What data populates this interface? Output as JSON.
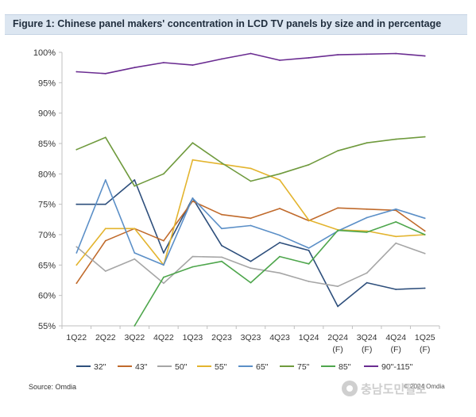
{
  "title": "Figure 1: Chinese panel makers' concentration in LCD TV panels by size and in percentage",
  "source": "Source: Omdia",
  "copyright": "© 2024 Omdia",
  "watermark": "충남도민일보",
  "chart_data": {
    "type": "line",
    "title": "Figure 1: Chinese panel makers' concentration in LCD TV panels by size and in percentage",
    "xlabel": "",
    "ylabel": "",
    "ylim": [
      55,
      100
    ],
    "yticks": [
      "55%",
      "60%",
      "65%",
      "70%",
      "75%",
      "80%",
      "85%",
      "90%",
      "95%",
      "100%"
    ],
    "grid": false,
    "legend": "bottom",
    "categories": [
      [
        "1Q22"
      ],
      [
        "2Q22"
      ],
      [
        "3Q22"
      ],
      [
        "4Q22"
      ],
      [
        "1Q23"
      ],
      [
        "2Q23"
      ],
      [
        "3Q23"
      ],
      [
        "4Q23"
      ],
      [
        "1Q24"
      ],
      [
        "2Q24",
        "(F)"
      ],
      [
        "3Q24",
        "(F)"
      ],
      [
        "4Q24",
        "(F)"
      ],
      [
        "1Q25",
        "(F)"
      ]
    ],
    "series": [
      {
        "name": "32\"",
        "color": "#2e4f7c",
        "values": [
          75,
          75,
          79,
          67,
          76,
          68.2,
          65.6,
          68.7,
          67.4,
          58.2,
          62.1,
          61.0,
          61.2
        ]
      },
      {
        "name": "43\"",
        "color": "#c06a2b",
        "values": [
          62,
          69,
          71,
          69,
          75.5,
          73.3,
          72.7,
          74.3,
          72.3,
          74.4,
          74.2,
          74.0,
          70.6
        ]
      },
      {
        "name": "50\"",
        "color": "#a6a6a6",
        "values": [
          68,
          64,
          66,
          62,
          66.4,
          66.3,
          64.5,
          63.7,
          62.3,
          61.5,
          63.7,
          68.6,
          66.9
        ]
      },
      {
        "name": "55\"",
        "color": "#e3b42e",
        "values": [
          65,
          71,
          71,
          65,
          82.3,
          81.6,
          80.9,
          79.0,
          72.4,
          70.8,
          70.6,
          69.7,
          70.0
        ]
      },
      {
        "name": "65\"",
        "color": "#5b8fc7",
        "values": [
          67,
          79,
          67,
          65,
          76,
          71.0,
          71.5,
          69.9,
          67.8,
          70.6,
          72.8,
          74.2,
          72.7
        ]
      },
      {
        "name": "75\"",
        "color": "#6f9a3d",
        "values": [
          84,
          86,
          78,
          80,
          85.1,
          81.8,
          78.8,
          80.0,
          81.5,
          83.8,
          85.1,
          85.7,
          86.1
        ]
      },
      {
        "name": "85\"",
        "color": "#4ea64c",
        "values": [
          null,
          null,
          55,
          63,
          64.7,
          65.6,
          62.1,
          66.4,
          65.2,
          70.7,
          70.4,
          72.1,
          70.0
        ]
      },
      {
        "name": "90\"-115\"",
        "color": "#6a2c91",
        "values": [
          96.8,
          96.5,
          97.5,
          98.3,
          97.9,
          98.9,
          99.8,
          98.7,
          99.1,
          99.6,
          99.7,
          99.8,
          99.4
        ]
      }
    ]
  }
}
